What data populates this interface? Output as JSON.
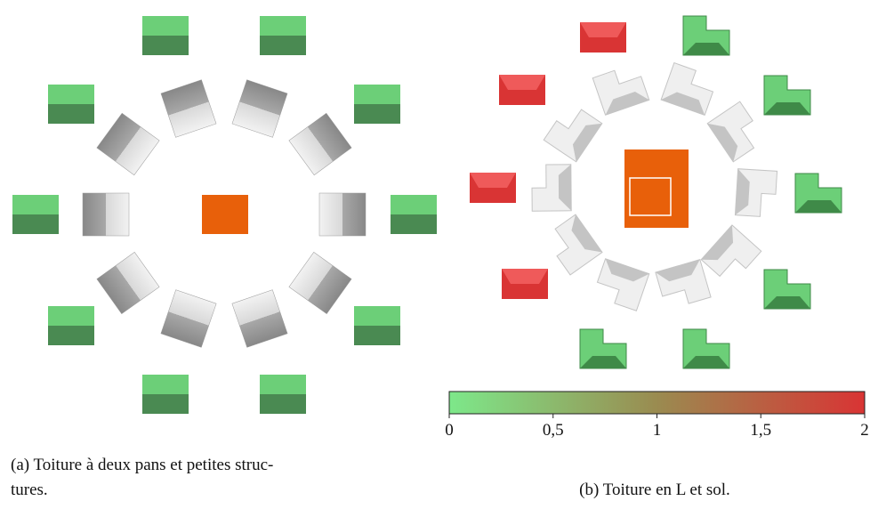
{
  "colorbar": {
    "lim": [
      0,
      2
    ],
    "ticks": [
      0,
      {
        "value": 0.5,
        "label": "0,5"
      },
      1,
      {
        "value": 1.5,
        "label": "1,5"
      },
      2
    ],
    "colors": [
      "#7de88a",
      "#9a8b50",
      "#d93434"
    ]
  },
  "captions": {
    "a": [
      "(a) Toiture à deux pans et petites struc-",
      "tures."
    ],
    "b": "(b) Toiture en L et sol."
  }
}
